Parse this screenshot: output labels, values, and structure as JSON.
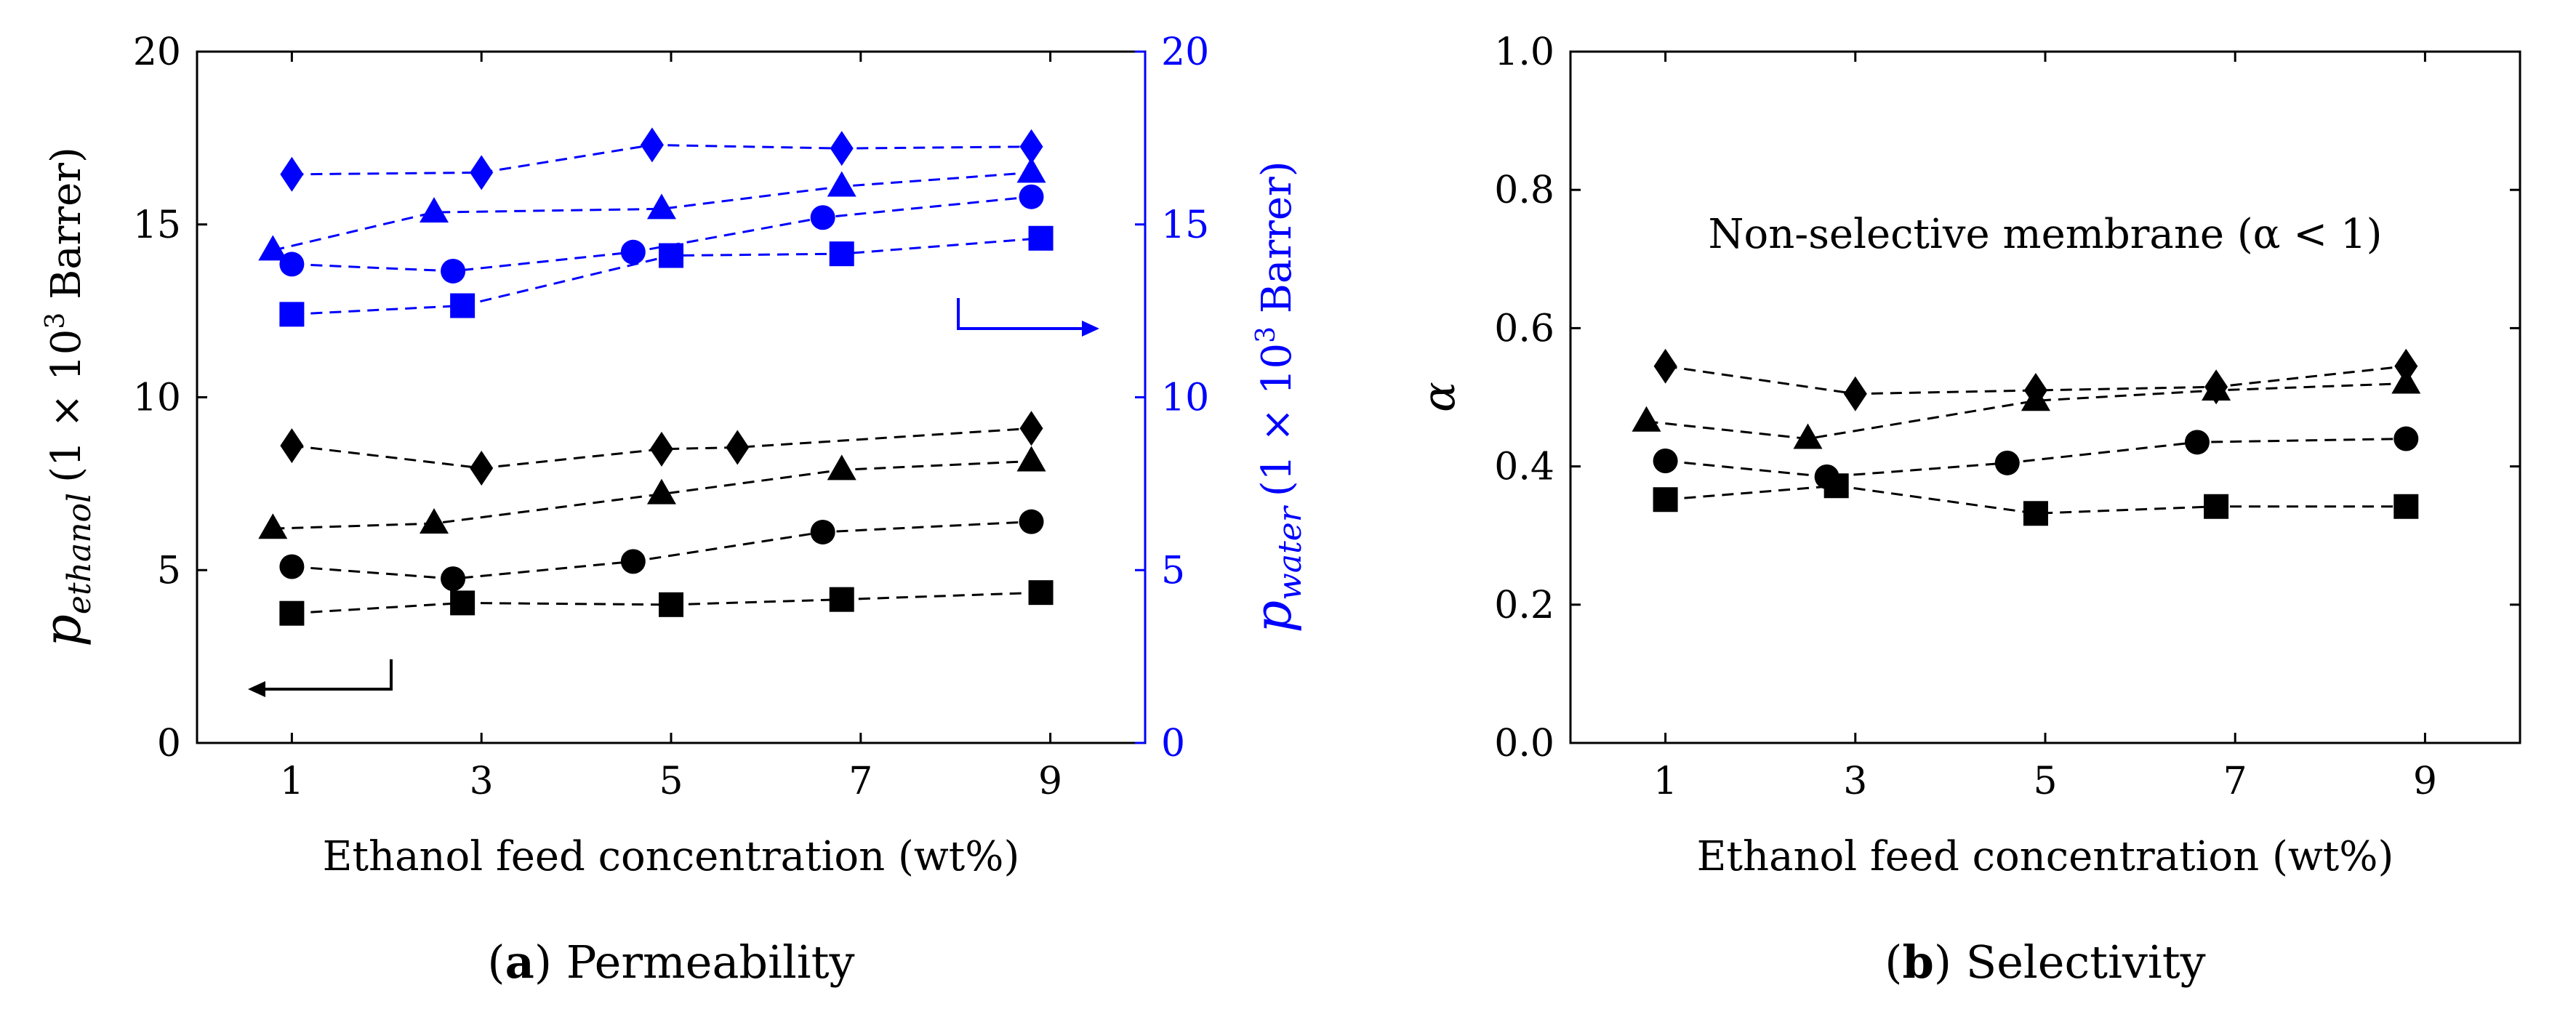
{
  "chart_data": [
    {
      "type": "scatter",
      "caption": {
        "letter": "a",
        "text": " Permeability"
      },
      "xlabel": "Ethanol feed concentration (wt%)",
      "ylabel_left": {
        "symbol": "p",
        "sub": "ethanol",
        "unit": "(1 × 10",
        "exp": "3",
        "unit_end": " Barrer)"
      },
      "ylabel_right": {
        "symbol": "p",
        "sub": "water",
        "unit": "(1 × 10",
        "exp": "3",
        "unit_end": " Barrer)"
      },
      "xlim": [
        0,
        10
      ],
      "ylim": [
        0,
        20
      ],
      "ylim_right": [
        0,
        20
      ],
      "x_ticks": [
        1,
        3,
        5,
        7,
        9
      ],
      "y_ticks": [
        0,
        5,
        10,
        15,
        20
      ],
      "y_ticks_right": [
        0,
        5,
        10,
        15,
        20
      ],
      "colors": {
        "left": "#000000",
        "right": "#0000ff"
      },
      "series": [
        {
          "axis": "left",
          "marker": "diamond",
          "x": [
            1.0,
            3.0,
            4.9,
            5.7,
            8.8
          ],
          "y": [
            8.6,
            7.95,
            8.5,
            8.55,
            9.1
          ]
        },
        {
          "axis": "left",
          "marker": "triangle",
          "x": [
            0.8,
            2.5,
            4.9,
            6.8,
            8.8
          ],
          "y": [
            6.2,
            6.35,
            7.2,
            7.9,
            8.15
          ]
        },
        {
          "axis": "left",
          "marker": "circle",
          "x": [
            1.0,
            2.7,
            4.6,
            6.6,
            8.8
          ],
          "y": [
            5.1,
            4.75,
            5.25,
            6.1,
            6.4
          ]
        },
        {
          "axis": "left",
          "marker": "square",
          "x": [
            1.0,
            2.8,
            5.0,
            6.8,
            8.9
          ],
          "y": [
            3.75,
            4.05,
            4.0,
            4.15,
            4.35
          ]
        },
        {
          "axis": "right",
          "marker": "diamond",
          "x": [
            1.0,
            3.0,
            4.8,
            6.8,
            8.8
          ],
          "y": [
            16.45,
            16.5,
            17.3,
            17.2,
            17.25
          ]
        },
        {
          "axis": "right",
          "marker": "triangle",
          "x": [
            0.8,
            2.5,
            4.9,
            6.8,
            8.8
          ],
          "y": [
            14.25,
            15.35,
            15.45,
            16.1,
            16.5
          ]
        },
        {
          "axis": "right",
          "marker": "circle",
          "x": [
            1.0,
            2.7,
            4.6,
            6.6,
            8.8
          ],
          "y": [
            13.85,
            13.65,
            14.2,
            15.2,
            15.8
          ]
        },
        {
          "axis": "right",
          "marker": "square",
          "x": [
            1.0,
            2.8,
            5.0,
            6.8,
            8.9
          ],
          "y": [
            12.4,
            12.65,
            14.1,
            14.15,
            14.6
          ]
        }
      ]
    },
    {
      "type": "scatter",
      "caption": {
        "letter": "b",
        "text": " Selectivity"
      },
      "xlabel": "Ethanol feed concentration (wt%)",
      "ylabel": "α",
      "xlim": [
        0,
        10
      ],
      "ylim": [
        0,
        1
      ],
      "x_ticks": [
        1,
        3,
        5,
        7,
        9
      ],
      "y_ticks": [
        "0.0",
        "0.2",
        "0.4",
        "0.6",
        "0.8",
        "1.0"
      ],
      "annotation": "Non-selective membrane (α < 1)",
      "series": [
        {
          "marker": "diamond",
          "x": [
            1.0,
            3.0,
            4.9,
            6.8,
            8.8
          ],
          "y": [
            0.545,
            0.505,
            0.51,
            0.515,
            0.545
          ]
        },
        {
          "marker": "triangle",
          "x": [
            0.8,
            2.5,
            4.9,
            6.8,
            8.8
          ],
          "y": [
            0.465,
            0.44,
            0.495,
            0.51,
            0.52
          ]
        },
        {
          "marker": "circle",
          "x": [
            1.0,
            2.7,
            4.6,
            6.6,
            8.8
          ],
          "y": [
            0.408,
            0.385,
            0.405,
            0.435,
            0.44
          ]
        },
        {
          "marker": "square",
          "x": [
            1.0,
            2.8,
            4.9,
            6.8,
            8.8
          ],
          "y": [
            0.352,
            0.372,
            0.332,
            0.342,
            0.342
          ]
        }
      ]
    }
  ]
}
